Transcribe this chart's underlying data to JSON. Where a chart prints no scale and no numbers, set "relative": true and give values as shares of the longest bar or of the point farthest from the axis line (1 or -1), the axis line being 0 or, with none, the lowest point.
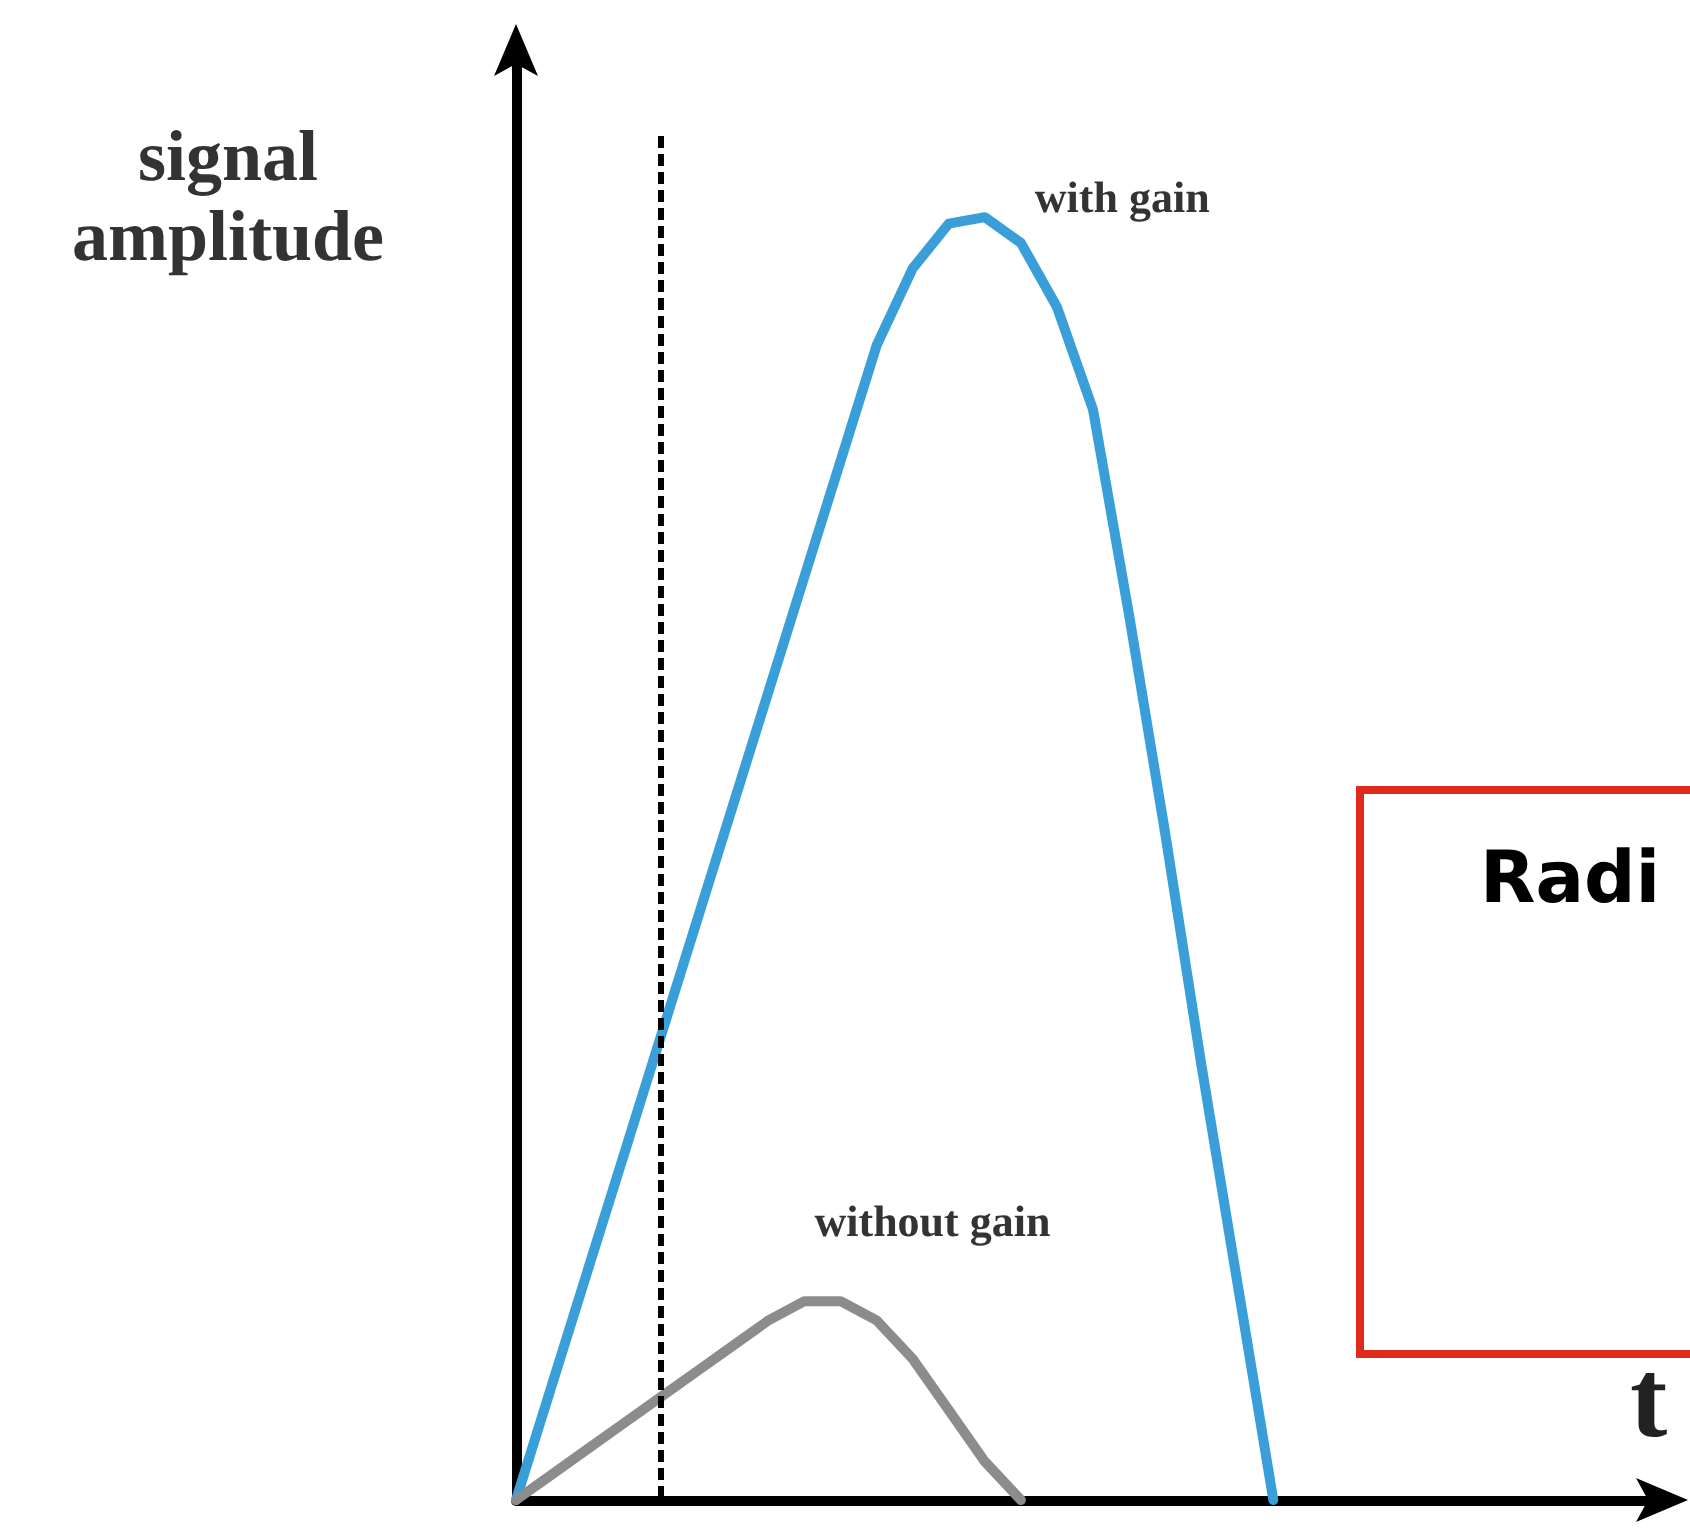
{
  "chart_data": {
    "type": "line",
    "relative": true,
    "xlabel": "t",
    "ylabel": "signal amplitude",
    "grid": false,
    "legend": false,
    "marker": "none",
    "line_style": "solid",
    "categories": [
      null,
      null,
      null,
      null,
      null,
      null,
      null,
      null,
      null,
      null,
      null,
      null,
      null,
      null,
      null,
      null,
      null,
      null,
      null,
      null,
      null,
      null,
      null,
      null,
      null,
      null,
      null,
      null,
      null,
      null,
      null,
      null,
      null
    ],
    "series": [
      {
        "name": "with gain",
        "color": "#3a9fd8",
        "values": [
          0,
          0.09,
          0.18,
          0.27,
          0.36,
          0.45,
          0.54,
          0.63,
          0.72,
          0.81,
          0.9,
          0.96,
          0.995,
          1,
          0.98,
          0.93,
          0.85,
          0.69,
          0.52,
          0.34,
          0.17,
          0,
          null,
          null,
          null,
          null,
          null,
          null,
          null,
          null,
          null,
          null,
          null
        ]
      },
      {
        "name": "without gain",
        "color": "#8c8c8c",
        "values": [
          0,
          0.02,
          0.04,
          0.06,
          0.08,
          0.1,
          0.12,
          0.14,
          0.155,
          0.155,
          0.14,
          0.11,
          0.07,
          0.03,
          0,
          null,
          null,
          null,
          null,
          null,
          null,
          null,
          null,
          null,
          null,
          null,
          null,
          null,
          null,
          null,
          null,
          null,
          null
        ]
      }
    ],
    "annotations": [
      "Radi"
    ]
  }
}
